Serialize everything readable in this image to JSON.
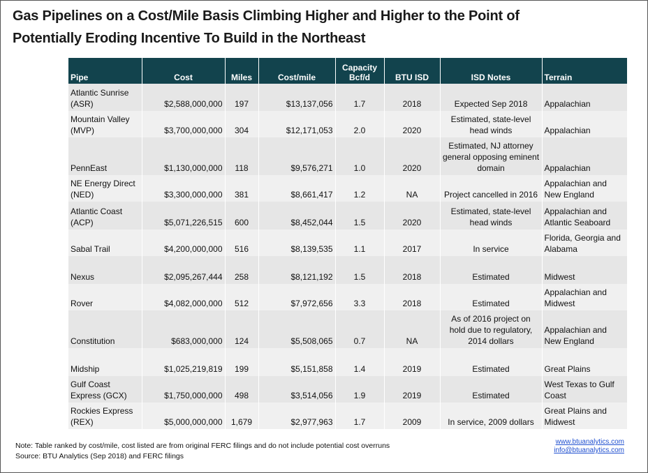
{
  "header": {
    "title": [
      "Gas Pipelines on a Cost/Mile Basis Climbing Higher and Higher to the Point of",
      "Potentially Eroding Incentive To Build in the Northeast"
    ]
  },
  "table": {
    "headers": [
      "Pipe",
      "Cost",
      "Miles",
      "Cost/mile",
      "Capacity Bcf/d",
      "BTU ISD",
      "ISD Notes",
      "Terrain"
    ],
    "rows": [
      [
        "Atlantic Sunrise (ASR)",
        "$2,588,000,000",
        "197",
        "$13,137,056",
        "1.7",
        "2018",
        "Expected Sep 2018",
        "Appalachian"
      ],
      [
        "Mountain Valley (MVP)",
        "$3,700,000,000",
        "304",
        "$12,171,053",
        "2.0",
        "2020",
        "Estimated, state-level head winds",
        "Appalachian"
      ],
      [
        "PennEast",
        "$1,130,000,000",
        "118",
        "$9,576,271",
        "1.0",
        "2020",
        "Estimated, NJ attorney general opposing eminent domain",
        "Appalachian"
      ],
      [
        "NE Energy Direct (NED)",
        "$3,300,000,000",
        "381",
        "$8,661,417",
        "1.2",
        "NA",
        "Project cancelled in 2016",
        "Appalachian and New England"
      ],
      [
        "Atlantic Coast (ACP)",
        "$5,071,226,515",
        "600",
        "$8,452,044",
        "1.5",
        "2020",
        "Estimated, state-level head winds",
        "Appalachian and Atlantic Seaboard"
      ],
      [
        "Sabal Trail",
        "$4,200,000,000",
        "516",
        "$8,139,535",
        "1.1",
        "2017",
        "In service",
        "Florida, Georgia and Alabama"
      ],
      [
        "Nexus",
        "$2,095,267,444",
        "258",
        "$8,121,192",
        "1.5",
        "2018",
        "Estimated",
        "Midwest"
      ],
      [
        "Rover",
        "$4,082,000,000",
        "512",
        "$7,972,656",
        "3.3",
        "2018",
        "Estimated",
        "Appalachian and Midwest"
      ],
      [
        "Constitution",
        "$683,000,000",
        "124",
        "$5,508,065",
        "0.7",
        "NA",
        "As of 2016 project on hold due to regulatory, 2014 dollars",
        "Appalachian and New England"
      ],
      [
        "Midship",
        "$1,025,219,819",
        "199",
        "$5,151,858",
        "1.4",
        "2019",
        "Estimated",
        "Great Plains"
      ],
      [
        "Gulf Coast Express (GCX)",
        "$1,750,000,000",
        "498",
        "$3,514,056",
        "1.9",
        "2019",
        "Estimated",
        "West Texas to Gulf Coast"
      ],
      [
        "Rockies Express (REX)",
        "$5,000,000,000",
        "1,679",
        "$2,977,963",
        "1.7",
        "2009",
        "In service, 2009 dollars",
        "Great Plains and Midwest"
      ]
    ]
  },
  "footer": {
    "note": "Note:  Table ranked by cost/mile, cost listed are from original FERC filings and do not include potential cost overruns",
    "source": "Source:  BTU Analytics (Sep 2018) and FERC filings",
    "links": [
      "www.btuanalytics.com",
      "info@btuanalytics.com"
    ]
  }
}
